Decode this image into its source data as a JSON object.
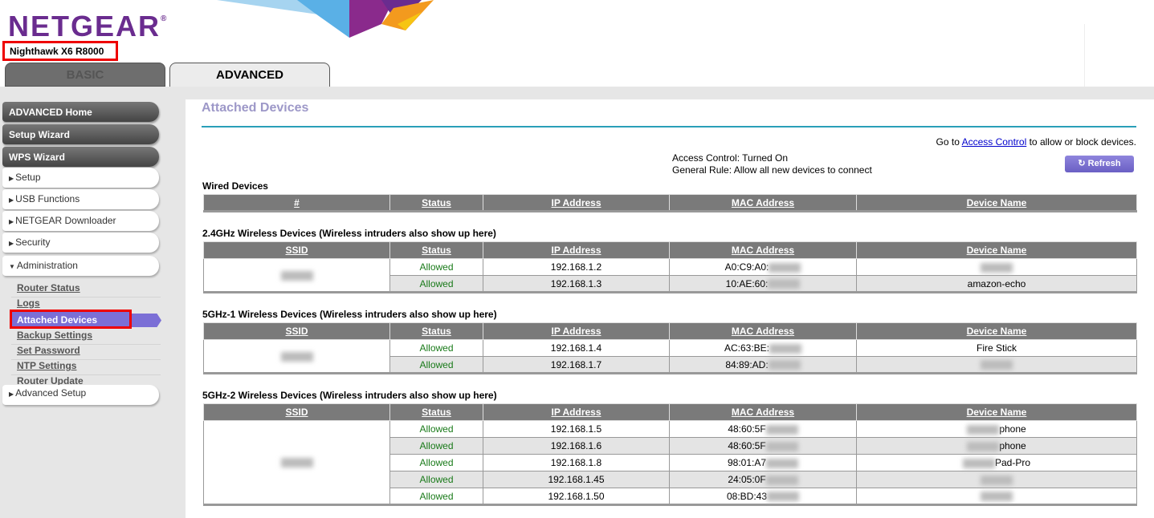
{
  "header": {
    "logo": "NETGEAR",
    "model": "Nighthawk X6 R8000",
    "tabs": [
      {
        "label": "BASIC"
      },
      {
        "label": "ADVANCED"
      }
    ]
  },
  "sidebar": {
    "main_buttons": [
      {
        "label": "ADVANCED Home"
      },
      {
        "label": "Setup Wizard"
      },
      {
        "label": "WPS Wizard"
      }
    ],
    "sections": [
      {
        "label": "Setup",
        "expanded": false
      },
      {
        "label": "USB Functions",
        "expanded": false
      },
      {
        "label": "NETGEAR Downloader",
        "expanded": false
      },
      {
        "label": "Security",
        "expanded": false
      },
      {
        "label": "Administration",
        "expanded": true
      }
    ],
    "admin_links": [
      {
        "label": "Router Status"
      },
      {
        "label": "Logs"
      },
      {
        "label": "Attached Devices",
        "selected": true
      },
      {
        "label": "Backup Settings"
      },
      {
        "label": "Set Password"
      },
      {
        "label": "NTP Settings"
      },
      {
        "label": "Router Update"
      }
    ],
    "advanced_setup": "Advanced Setup"
  },
  "page": {
    "title": "Attached Devices",
    "goto_prefix": "Go to ",
    "access_link": "Access Control",
    "goto_suffix": " to allow or block devices.",
    "access_control": "Access Control: Turned On",
    "general_rule": "General Rule: Allow all new devices to connect",
    "refresh": "Refresh",
    "accent": "#7b6fd6"
  },
  "wired": {
    "title": "Wired Devices",
    "columns": [
      "#",
      "Status",
      "IP Address",
      "MAC Address",
      "Device Name"
    ]
  },
  "wireless": [
    {
      "title": "2.4GHz Wireless Devices (Wireless intruders also show up here)",
      "columns": [
        "SSID",
        "Status",
        "IP Address",
        "MAC Address",
        "Device Name"
      ],
      "rows": [
        {
          "status": "Allowed",
          "ip": "192.168.1.2",
          "mac": "A0:C9:A0:",
          "name": "",
          "name_blurred": true
        },
        {
          "status": "Allowed",
          "ip": "192.168.1.3",
          "mac": "10:AE:60:",
          "name": "amazon-echo",
          "name_blurred": false
        }
      ]
    },
    {
      "title": "5GHz-1 Wireless Devices (Wireless intruders also show up here)",
      "columns": [
        "SSID",
        "Status",
        "IP Address",
        "MAC Address",
        "Device Name"
      ],
      "rows": [
        {
          "status": "Allowed",
          "ip": "192.168.1.4",
          "mac": "AC:63:BE:",
          "name": "Fire Stick",
          "name_blurred": false
        },
        {
          "status": "Allowed",
          "ip": "192.168.1.7",
          "mac": "84:89:AD:",
          "name": "",
          "name_blurred": true
        }
      ]
    },
    {
      "title": "5GHz-2 Wireless Devices (Wireless intruders also show up here)",
      "columns": [
        "SSID",
        "Status",
        "IP Address",
        "MAC Address",
        "Device Name"
      ],
      "rows": [
        {
          "status": "Allowed",
          "ip": "192.168.1.5",
          "mac": "48:60:5F",
          "name": "phone",
          "name_blurred": true
        },
        {
          "status": "Allowed",
          "ip": "192.168.1.6",
          "mac": "48:60:5F",
          "name": "phone",
          "name_blurred": true
        },
        {
          "status": "Allowed",
          "ip": "192.168.1.8",
          "mac": "98:01:A7",
          "name": "Pad-Pro",
          "name_blurred": true
        },
        {
          "status": "Allowed",
          "ip": "192.168.1.45",
          "mac": "24:05:0F",
          "name": "",
          "name_blurred": true
        },
        {
          "status": "Allowed",
          "ip": "192.168.1.50",
          "mac": "08:BD:43",
          "name": "",
          "name_blurred": true
        }
      ]
    }
  ]
}
